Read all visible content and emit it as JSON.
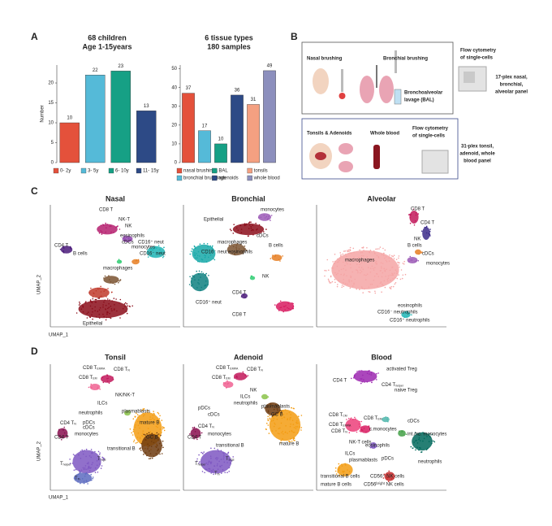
{
  "panel_labels": [
    "A",
    "B",
    "C",
    "D"
  ],
  "chart_data": [
    {
      "type": "bar",
      "title": "68 children",
      "subtitle": "Age 1-15years",
      "y_label": "Number",
      "categories": [
        "0- 2y",
        "3- 5y",
        "6- 10y",
        "11- 15y"
      ],
      "values": [
        10,
        22,
        23,
        13
      ],
      "colors": [
        "#e4513b",
        "#55bad8",
        "#16a085",
        "#2d4a86"
      ],
      "ylim": [
        0,
        24.5
      ],
      "yticks": [
        0,
        5,
        10,
        15,
        20
      ],
      "legend": "bottom"
    },
    {
      "type": "bar",
      "title": "6 tissue types",
      "subtitle": "180 samples",
      "categories": [
        "nasal brushings",
        "bronchial brushings",
        "BAL",
        "adenoids",
        "tonsils",
        "whole blood"
      ],
      "values": [
        37,
        17,
        10,
        36,
        31,
        49
      ],
      "colors": [
        "#e4513b",
        "#55bad8",
        "#16a085",
        "#2d4a86",
        "#f4a081",
        "#8c8fbd"
      ],
      "ylim": [
        0,
        52
      ],
      "yticks": [
        0,
        10,
        20,
        30,
        40,
        50
      ],
      "legend": "bottom"
    }
  ],
  "diagram": {
    "airway": {
      "nasal": "Nasal brushing",
      "bronchial": "Bronchial brushing",
      "bal": [
        "Bronchoalveolar",
        "lavage (BAL)"
      ],
      "method": [
        "Flow cytometry",
        "of single-cells"
      ],
      "panel": [
        "17-plex nasal,",
        "bronchial,",
        "alveolar panel"
      ]
    },
    "blood": {
      "tonsils": "Tonsils & Adenoids",
      "blood": "Whole blood",
      "method": [
        "Flow cytometry",
        "of single-cells"
      ],
      "panel": [
        "31-plex tonsil,",
        "adenoid, whole",
        "blood panel"
      ]
    }
  },
  "umap": {
    "x_label": "UMAP_1",
    "y_label": "UMAP_2",
    "row_c": [
      {
        "title": "Nasal",
        "labels": [
          "CD8 T",
          "NK-T",
          "NK",
          "CD4 T",
          "eosinophils",
          "B cells",
          "cDCs",
          "monocytes",
          "macrophages",
          "CD16⁺ neut",
          "CD16⁻ neut",
          "Epithelial"
        ]
      },
      {
        "title": "Bronchial",
        "labels": [
          "monocytes",
          "Epithelial",
          "cDCs",
          "macrophages",
          "eosinophils",
          "CD16⁻ neut",
          "B cells",
          "NK",
          "CD4 T",
          "CD16⁺ neut",
          "CD8 T"
        ]
      },
      {
        "title": "Alveolar",
        "labels": [
          "CD8 T",
          "CD4 T",
          "NK",
          "B cells",
          "cDCs",
          "macrophages",
          "monocytes",
          "eosinophils",
          "CD16⁻ neutrophils",
          "CD16⁺ neutrophils"
        ]
      }
    ],
    "row_d": [
      {
        "title": "Tonsil",
        "labels": [
          [
            "CD8 T",
            "EMRA"
          ],
          [
            "CD8 T",
            "N"
          ],
          [
            "CD8 T",
            "EM"
          ],
          "NK/NK-T",
          "ILCs",
          "neutrophils",
          "pDCs",
          "cDCs",
          "plasmablasts",
          [
            "CD4 T",
            "N"
          ],
          "monocytes",
          "mature B",
          "GC B",
          "CD4 T",
          "transitional B",
          [
            "T",
            "regs"
          ],
          [
            "T",
            "fh"
          ],
          [
            "T",
            "helper"
          ]
        ]
      },
      {
        "title": "Adenoid",
        "labels": [
          [
            "CD8 T",
            "EMRA"
          ],
          [
            "CD8 T",
            "N"
          ],
          [
            "CD8 T",
            "EM"
          ],
          "NK",
          "ILCs",
          "neutrophils",
          "pDCs",
          "cDCs",
          "plasmablasts",
          "GC B",
          [
            "CD4 T",
            "N"
          ],
          "monocytes",
          "transitional B",
          "mature B",
          "CD4 T",
          [
            "T",
            "regs"
          ],
          [
            "T",
            "helper"
          ],
          [
            "T",
            "fh"
          ]
        ]
      },
      {
        "title": "Blood",
        "labels": [
          "CD4 T",
          "activated Treg",
          [
            "CD4 T",
            "helper"
          ],
          "naive Treg",
          [
            "CD8 T",
            "CM"
          ],
          [
            "CD8 T",
            "EM"
          ],
          [
            "CD8 T",
            "EMRA"
          ],
          [
            "CD8 T",
            "N"
          ],
          "cDCs",
          "c.monocytes",
          "int./nc. monocytes",
          "NK-T cells",
          "eosinophils",
          "ILCs",
          "plasmablasts",
          "pDCs",
          "neutrophils",
          "transitional B cells",
          "CD56⁺ NK cells",
          "mature B cells",
          "CD56ᵇʳⁱᵍʰᵗ NK cells"
        ]
      }
    ]
  }
}
